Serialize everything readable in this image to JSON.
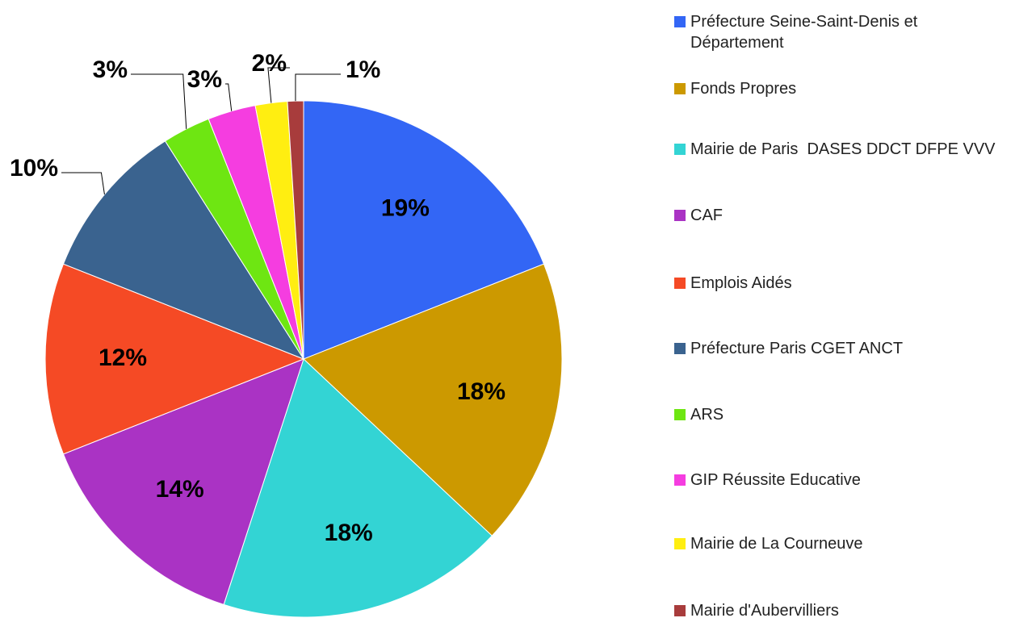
{
  "chart_data": {
    "type": "pie",
    "categories": [
      "Préfecture Seine-Saint-Denis et Département",
      "Fonds Propres",
      "Mairie de Paris  DASES DDCT DFPE VVV",
      "CAF",
      "Emplois Aidés",
      "Préfecture Paris CGET ANCT",
      "ARS",
      "GIP Réussite Educative",
      "Mairie de La Courneuve",
      "Mairie d'Aubervilliers"
    ],
    "values": [
      19,
      18,
      18,
      14,
      12,
      10,
      3,
      3,
      2,
      1
    ],
    "value_labels": [
      "19%",
      "18%",
      "18%",
      "14%",
      "12%",
      "10%",
      "3%",
      "3%",
      "2%",
      "1%"
    ],
    "colors": [
      "#3366f5",
      "#cc9900",
      "#33d4d4",
      "#aa33c4",
      "#f54a25",
      "#3a638f",
      "#6ee612",
      "#f53de0",
      "#ffee11",
      "#a83c3c"
    ],
    "legend": "right"
  }
}
